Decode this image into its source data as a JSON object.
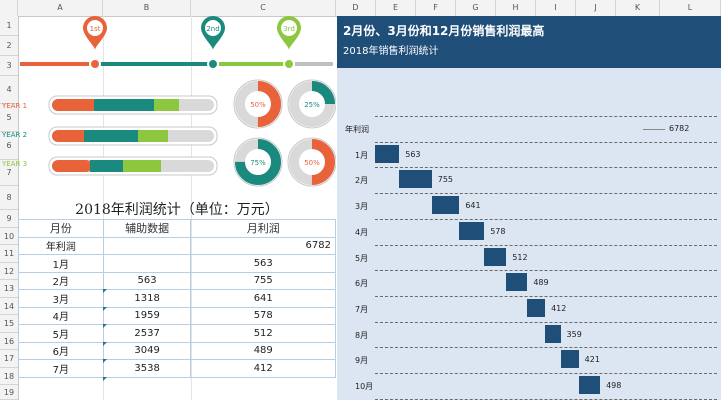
{
  "columns": [
    "D",
    "E",
    "F",
    "G",
    "H",
    "I",
    "J",
    "K",
    "L"
  ],
  "left_columns": [
    "A",
    "B",
    "C"
  ],
  "rows": [
    "1",
    "2",
    "3",
    "4",
    "5",
    "6",
    "7",
    "8",
    "9",
    "10",
    "11",
    "12",
    "13",
    "14",
    "15",
    "16",
    "17",
    "18",
    "19"
  ],
  "pins": [
    {
      "label": "1st",
      "color": "#e8623a"
    },
    {
      "label": "2nd",
      "color": "#1a8a7e"
    },
    {
      "label": "3rd",
      "color": "#8dc63f"
    }
  ],
  "years": [
    {
      "label": "YEAR 1",
      "color": "#e8623a"
    },
    {
      "label": "YEAR 2",
      "color": "#1a8a7e"
    },
    {
      "label": "YEAR 3",
      "color": "#8dc63f"
    }
  ],
  "donuts": [
    {
      "label": "50%",
      "value": 0.5,
      "color": "#e8623a"
    },
    {
      "label": "25%",
      "value": 0.25,
      "color": "#1a8a7e"
    },
    {
      "label": "75%",
      "value": 0.75,
      "color": "#1a8a7e"
    },
    {
      "label": "50%",
      "value": 0.5,
      "color": "#e8623a"
    }
  ],
  "table": {
    "title": "2018年利润统计（单位：万元）",
    "headers": [
      "月份",
      "辅助数据",
      "月利润"
    ],
    "total": {
      "label": "年利润",
      "aux": "",
      "value": "6782"
    },
    "rows": [
      {
        "month": "1月",
        "aux": "",
        "value": "563"
      },
      {
        "month": "2月",
        "aux": "563",
        "value": "755"
      },
      {
        "month": "3月",
        "aux": "1318",
        "value": "641"
      },
      {
        "month": "4月",
        "aux": "1959",
        "value": "578"
      },
      {
        "month": "5月",
        "aux": "2537",
        "value": "512"
      },
      {
        "month": "6月",
        "aux": "3049",
        "value": "489"
      },
      {
        "month": "7月",
        "aux": "3538",
        "value": "412"
      }
    ]
  },
  "chart_data": {
    "type": "bar",
    "title": "2月份、3月份和12月份销售利润最高",
    "subtitle": "2018年销售利润统计",
    "total_label": "年利润",
    "total_value": 6782,
    "categories": [
      "1月",
      "2月",
      "3月",
      "4月",
      "5月",
      "6月",
      "7月",
      "8月",
      "9月",
      "10月"
    ],
    "offsets": [
      0,
      563,
      1318,
      1959,
      2537,
      3049,
      3538,
      3950,
      4309,
      4730
    ],
    "values": [
      563,
      755,
      641,
      578,
      512,
      489,
      412,
      359,
      421,
      498
    ],
    "xlim": [
      0,
      6782
    ],
    "grid": "dashed-horizontal",
    "bar_color": "#1f4e79"
  }
}
